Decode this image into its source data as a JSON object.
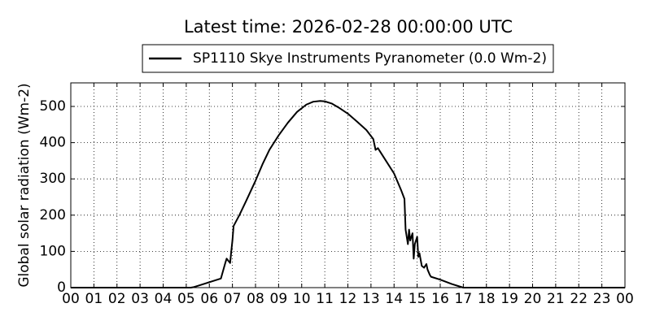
{
  "chart_data": {
    "type": "line",
    "title": "Latest time: 2026-02-28 00:00:00 UTC",
    "y_label": "Global solar radiation (Wm-2)",
    "x": [
      0,
      5.2,
      5.3,
      5.5,
      6.0,
      6.5,
      6.7,
      6.75,
      6.85,
      6.9,
      6.95,
      7.0,
      7.05,
      7.3,
      7.6,
      8.0,
      8.3,
      8.6,
      9.0,
      9.4,
      9.8,
      10.2,
      10.5,
      10.8,
      11.0,
      11.3,
      11.6,
      12.0,
      12.4,
      12.8,
      13.1,
      13.2,
      13.3,
      13.6,
      14.0,
      14.3,
      14.45,
      14.5,
      14.6,
      14.65,
      14.7,
      14.8,
      14.85,
      14.9,
      15.0,
      15.05,
      15.1,
      15.2,
      15.3,
      15.4,
      15.45,
      15.55,
      15.6,
      16.0,
      16.5,
      16.9,
      17.0,
      24
    ],
    "series": [
      {
        "name": "SP1110 Skye Instruments Pyranometer (0.0 Wm-2)",
        "color": "#000000",
        "values": [
          0,
          0,
          1,
          5,
          15,
          25,
          70,
          80,
          72,
          68,
          100,
          130,
          170,
          200,
          240,
          295,
          340,
          380,
          420,
          455,
          485,
          505,
          513,
          515,
          514,
          508,
          497,
          480,
          458,
          435,
          410,
          380,
          385,
          355,
          315,
          270,
          245,
          160,
          120,
          160,
          130,
          150,
          80,
          120,
          140,
          85,
          95,
          60,
          55,
          65,
          50,
          35,
          30,
          22,
          10,
          2,
          0,
          0
        ]
      }
    ],
    "xlim": [
      0,
      24
    ],
    "xticks": [
      {
        "value": 0,
        "label": "00"
      },
      {
        "value": 1,
        "label": "01"
      },
      {
        "value": 2,
        "label": "02"
      },
      {
        "value": 3,
        "label": "03"
      },
      {
        "value": 4,
        "label": "04"
      },
      {
        "value": 5,
        "label": "05"
      },
      {
        "value": 6,
        "label": "06"
      },
      {
        "value": 7,
        "label": "07"
      },
      {
        "value": 8,
        "label": "08"
      },
      {
        "value": 9,
        "label": "09"
      },
      10,
      11,
      12,
      13,
      14,
      15,
      16,
      17,
      18,
      19,
      20,
      21,
      22,
      23,
      {
        "value": 24,
        "label": "00"
      }
    ],
    "ylim": [
      0,
      565
    ],
    "yticks": [
      0,
      100,
      200,
      300,
      400,
      500
    ],
    "grid": true,
    "legend": "top"
  }
}
